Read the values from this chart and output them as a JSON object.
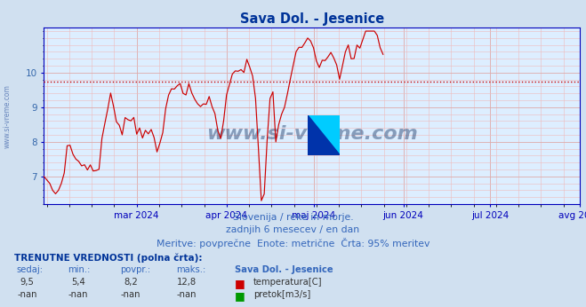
{
  "title": "Sava Dol. - Jesenice",
  "title_color": "#003399",
  "bg_color": "#d0e0f0",
  "plot_bg_color": "#ddeeff",
  "line_color": "#cc0000",
  "avg_line_color": "#cc0000",
  "avg_line_value": 9.75,
  "ylim": [
    6.2,
    11.3
  ],
  "yticks": [
    7,
    8,
    9,
    10
  ],
  "ylabel_color": "#3366aa",
  "grid_major_color": "#ddaaaa",
  "grid_minor_color": "#eebbbb",
  "axis_color": "#0000bb",
  "xticklabels": [
    "mar 2024",
    "apr 2024",
    "maj 2024",
    "jun 2024",
    "jul 2024",
    "avg 2024"
  ],
  "subtitle1": "Slovenija / reke in morje.",
  "subtitle2": "zadnjih 6 mesecev / en dan",
  "subtitle3": "Meritve: povprečne  Enote: metrične  Črta: 95% meritev",
  "subtitle_color": "#3366bb",
  "table_header": "TRENUTNE VREDNOSTI (polna črta):",
  "col1": "sedaj:",
  "col2": "min.:",
  "col3": "povpr.:",
  "col4": "maks.:",
  "col5": "Sava Dol. - Jesenice",
  "row1": [
    "9,5",
    "5,4",
    "8,2",
    "12,8"
  ],
  "row2": [
    "-nan",
    "-nan",
    "-nan",
    "-nan"
  ],
  "label1": "temperatura[C]",
  "label2": "pretok[m3/s]",
  "label1_color": "#cc0000",
  "label2_color": "#009900",
  "watermark": "www.si-vreme.com",
  "watermark_color": "#1a3a6a",
  "side_text": "www.si-vreme.com"
}
